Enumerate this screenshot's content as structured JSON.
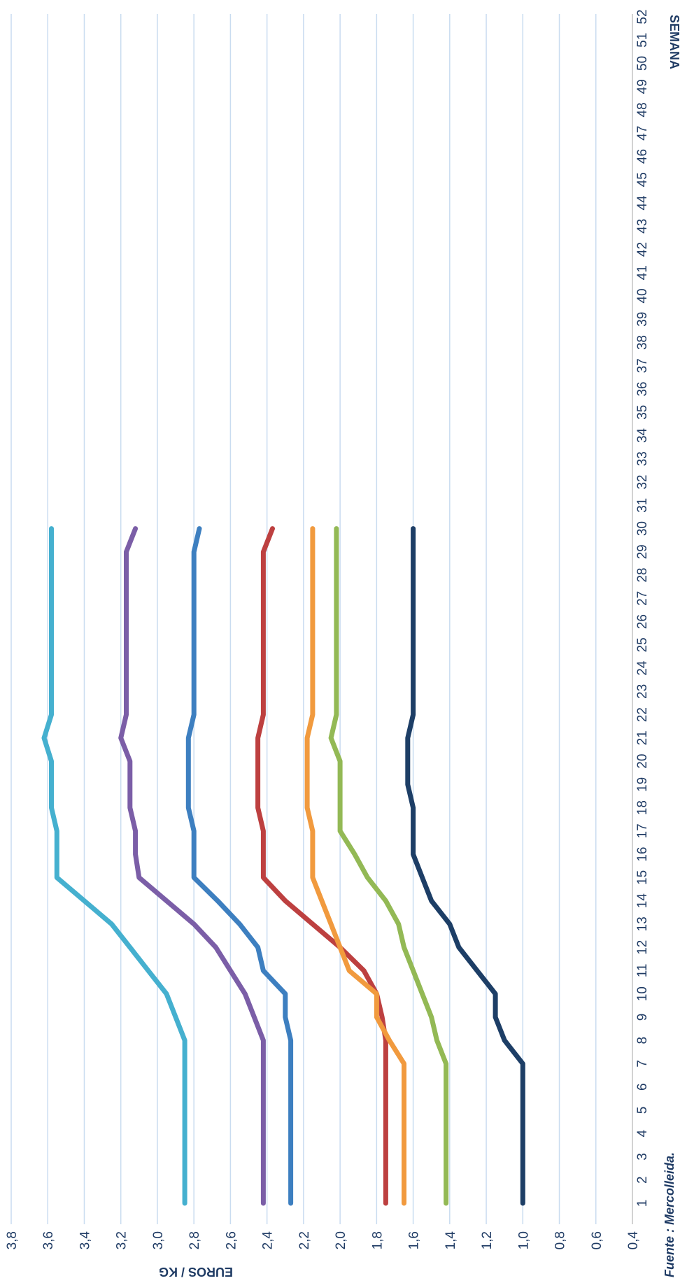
{
  "chart_data": {
    "type": "line",
    "orientation": "rotated-90-clockwise",
    "title": "",
    "xlabel": "SEMANA",
    "ylabel": "EUROS / KG",
    "source": "Fuente : Mercolleida.",
    "ylim": [
      0.4,
      3.8
    ],
    "y_ticks": [
      "0,4",
      "0,6",
      "0,8",
      "1,0",
      "1,2",
      "1,4",
      "1,6",
      "1,8",
      "2,0",
      "2,2",
      "2,4",
      "2,6",
      "2,8",
      "3,0",
      "3,2",
      "3,4",
      "3,6",
      "3,8"
    ],
    "x_ticks": [
      "1",
      "2",
      "3",
      "4",
      "5",
      "6",
      "7",
      "8",
      "9",
      "10",
      "11",
      "12",
      "13",
      "14",
      "15",
      "16",
      "17",
      "18",
      "19",
      "20",
      "21",
      "22",
      "23",
      "24",
      "25",
      "26",
      "27",
      "28",
      "29",
      "30",
      "31",
      "32",
      "33",
      "34",
      "35",
      "36",
      "37",
      "38",
      "39",
      "40",
      "41",
      "42",
      "43",
      "44",
      "45",
      "46",
      "47",
      "48",
      "49",
      "50",
      "51",
      "52"
    ],
    "grid": true,
    "x": [
      1,
      2,
      3,
      4,
      5,
      6,
      7,
      8,
      9,
      10,
      11,
      12,
      13,
      14,
      15,
      16,
      17,
      18,
      19,
      20,
      21,
      22,
      23,
      24,
      25,
      26,
      27,
      28,
      29,
      30
    ],
    "series": [
      {
        "color": "#45b0cf",
        "values": [
          2.85,
          2.85,
          2.85,
          2.85,
          2.85,
          2.85,
          2.85,
          2.85,
          2.9,
          2.95,
          3.05,
          3.15,
          3.25,
          3.4,
          3.55,
          3.55,
          3.55,
          3.58,
          3.58,
          3.58,
          3.62,
          3.58,
          3.58,
          3.58,
          3.58,
          3.58,
          3.58,
          3.58,
          3.58,
          3.58
        ]
      },
      {
        "color": "#7b5ea7",
        "values": [
          2.42,
          2.42,
          2.42,
          2.42,
          2.42,
          2.42,
          2.42,
          2.42,
          2.47,
          2.52,
          2.6,
          2.68,
          2.8,
          2.95,
          3.1,
          3.12,
          3.12,
          3.15,
          3.15,
          3.15,
          3.2,
          3.17,
          3.17,
          3.17,
          3.17,
          3.17,
          3.17,
          3.17,
          3.17,
          3.12
        ]
      },
      {
        "color": "#3d7fc0",
        "values": [
          2.27,
          2.27,
          2.27,
          2.27,
          2.27,
          2.27,
          2.27,
          2.27,
          2.3,
          2.3,
          2.42,
          2.45,
          2.55,
          2.67,
          2.8,
          2.8,
          2.8,
          2.83,
          2.83,
          2.83,
          2.83,
          2.8,
          2.8,
          2.8,
          2.8,
          2.8,
          2.8,
          2.8,
          2.8,
          2.77
        ]
      },
      {
        "color": "#bd4040",
        "values": [
          1.75,
          1.75,
          1.75,
          1.75,
          1.75,
          1.75,
          1.75,
          1.75,
          1.77,
          1.8,
          1.87,
          2.0,
          2.15,
          2.3,
          2.42,
          2.42,
          2.42,
          2.45,
          2.45,
          2.45,
          2.45,
          2.42,
          2.42,
          2.42,
          2.42,
          2.42,
          2.42,
          2.42,
          2.42,
          2.37
        ]
      },
      {
        "color": "#f19a3e",
        "values": [
          1.65,
          1.65,
          1.65,
          1.65,
          1.65,
          1.65,
          1.65,
          1.73,
          1.8,
          1.8,
          1.95,
          2.0,
          2.05,
          2.1,
          2.15,
          2.15,
          2.15,
          2.18,
          2.18,
          2.18,
          2.18,
          2.15,
          2.15,
          2.15,
          2.15,
          2.15,
          2.15,
          2.15,
          2.15,
          2.15
        ]
      },
      {
        "color": "#93b955",
        "values": [
          1.42,
          1.42,
          1.42,
          1.42,
          1.42,
          1.42,
          1.42,
          1.47,
          1.5,
          1.55,
          1.6,
          1.65,
          1.68,
          1.75,
          1.85,
          1.92,
          2.0,
          2.0,
          2.0,
          2.0,
          2.05,
          2.02,
          2.02,
          2.02,
          2.02,
          2.02,
          2.02,
          2.02,
          2.02,
          2.02
        ]
      },
      {
        "color": "#1d3e66",
        "values": [
          1.0,
          1.0,
          1.0,
          1.0,
          1.0,
          1.0,
          1.0,
          1.1,
          1.15,
          1.15,
          1.25,
          1.35,
          1.4,
          1.5,
          1.55,
          1.6,
          1.6,
          1.6,
          1.63,
          1.63,
          1.63,
          1.6,
          1.6,
          1.6,
          1.6,
          1.6,
          1.6,
          1.6,
          1.6,
          1.6
        ]
      }
    ]
  }
}
